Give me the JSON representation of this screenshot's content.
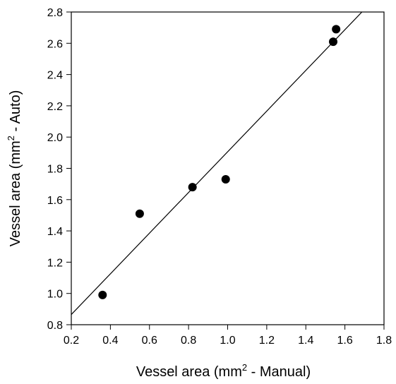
{
  "chart_data": {
    "type": "scatter",
    "title": "",
    "xlabel": {
      "prefix": "Vessel area (mm",
      "sup": "2",
      "suffix": " - Manual)"
    },
    "ylabel": {
      "prefix": "Vessel area (mm",
      "sup": "2",
      "suffix": " - Auto)"
    },
    "xlim": [
      0.2,
      1.8
    ],
    "ylim": [
      0.8,
      2.8
    ],
    "x_ticks": [
      "0.2",
      "0.4",
      "0.6",
      "0.8",
      "1.0",
      "1.2",
      "1.4",
      "1.6",
      "1.8"
    ],
    "y_ticks": [
      "0.8",
      "1.0",
      "1.2",
      "1.4",
      "1.6",
      "1.8",
      "2.0",
      "2.2",
      "2.4",
      "2.6",
      "2.8"
    ],
    "grid": false,
    "points": [
      {
        "x": 0.36,
        "y": 0.99
      },
      {
        "x": 0.55,
        "y": 1.51
      },
      {
        "x": 0.82,
        "y": 1.68
      },
      {
        "x": 0.99,
        "y": 1.73
      },
      {
        "x": 1.54,
        "y": 2.61
      },
      {
        "x": 1.555,
        "y": 2.69
      }
    ],
    "fit_line": {
      "x": [
        0.2,
        1.687
      ],
      "y": [
        0.865,
        2.8
      ]
    },
    "colors": {
      "marker": "#000000",
      "line": "#000000",
      "axes": "#000000"
    }
  }
}
